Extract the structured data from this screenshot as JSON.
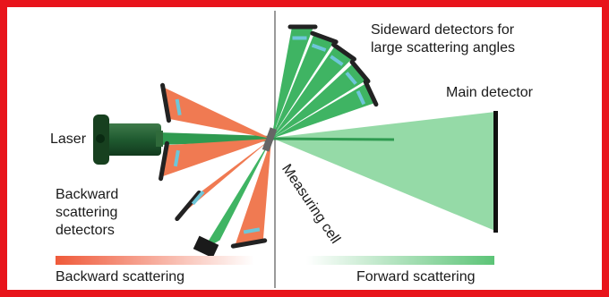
{
  "colors": {
    "frame": "#e8141b",
    "backward": "#f07a52",
    "forward": "#5cc477",
    "forward_dark": "#1f8a3f",
    "laser_body": "#1f5a30",
    "mirror": "#3a3a3a",
    "lens": "#6ec6d8"
  },
  "labels": {
    "sideward": "Sideward detectors for\nlarge scattering angles",
    "main_detector": "Main detector",
    "laser": "Laser",
    "backward_detectors": "Backward\nscattering\ndetectors",
    "measuring_cell": "Measuring cell",
    "backward_scattering": "Backward scattering",
    "forward_scattering": "Forward scattering"
  }
}
